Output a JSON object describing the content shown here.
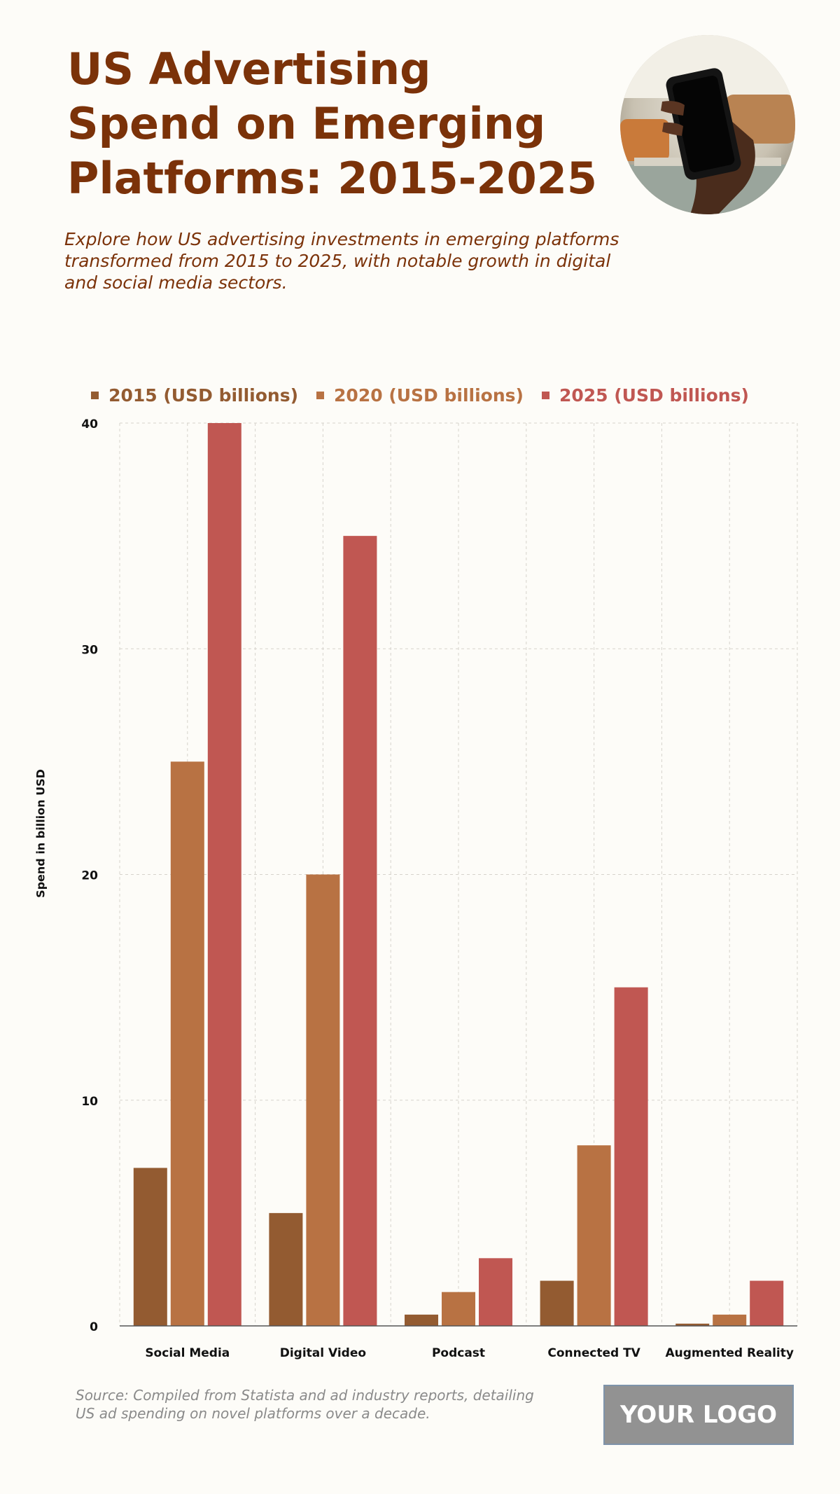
{
  "header": {
    "title": "US Advertising Spend on Emerging Platforms: 2015-2025",
    "subtitle": "Explore how US advertising investments in emerging platforms transformed from 2015 to 2025, with notable growth in digital and social media sectors."
  },
  "footer": {
    "source": "Source: Compiled from Statista and ad industry reports, detailing US ad spending on novel platforms over a decade.",
    "logo_text": "YOUR LOGO"
  },
  "chart_data": {
    "type": "bar",
    "title": "",
    "xlabel": "",
    "ylabel": "Spend in billion USD",
    "categories": [
      "Social Media",
      "Digital Video",
      "Podcast",
      "Connected TV",
      "Augmented Reality"
    ],
    "series": [
      {
        "name": "2015 (USD billions)",
        "color": "#935b31",
        "values": [
          7,
          5,
          0.5,
          2,
          0.1
        ]
      },
      {
        "name": "2020 (USD billions)",
        "color": "#b87243",
        "values": [
          25,
          20,
          1.5,
          8,
          0.5
        ]
      },
      {
        "name": "2025 (USD billions)",
        "color": "#c05752",
        "values": [
          40,
          35,
          3,
          15,
          2
        ]
      }
    ],
    "ylim": [
      0,
      40
    ],
    "yticks": [
      "0",
      "10",
      "20",
      "30",
      "40"
    ],
    "grid": true,
    "legend_position": "top"
  }
}
